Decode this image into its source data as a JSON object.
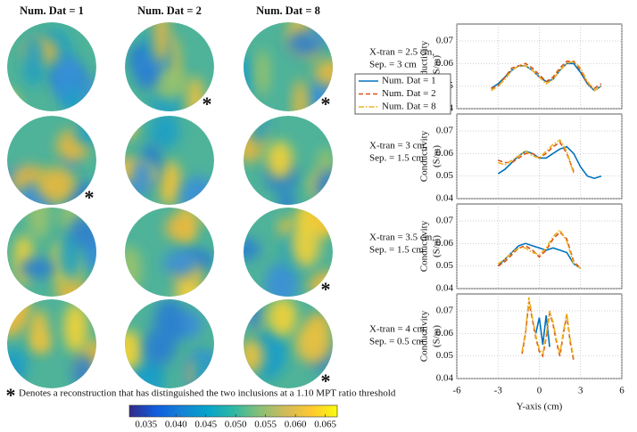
{
  "figure": {
    "column_titles": [
      "Num. Dat = 1",
      "Num. Dat = 2",
      "Num. Dat = 8"
    ],
    "row_labels": [
      [
        "X-tran = 2.5 cm,",
        "Sep. = 3 cm"
      ],
      [
        "X-tran = 3 cm,",
        "Sep. = 1.5 cm"
      ],
      [
        "X-tran = 3.5 cm,",
        "Sep. = 1.5 cm"
      ],
      [
        "X-tran = 4 cm,",
        "Sep. = 0.5 cm"
      ]
    ],
    "marker": "*",
    "note": "Denotes a reconstruction that has distinguished the two inclusions at a 1.10 MPT ratio threshold",
    "distinguished": [
      [
        false,
        true,
        true
      ],
      [
        true,
        false,
        false
      ],
      [
        false,
        false,
        true
      ],
      [
        false,
        false,
        true
      ]
    ]
  },
  "chart_data": [
    {
      "type": "line",
      "y_label": [
        "Conductivity",
        "(S/m)"
      ],
      "legend": "left",
      "grid": true,
      "show_xtick_labels": false,
      "xlim": [
        -6,
        6
      ],
      "xticks": [
        -6,
        -3,
        0,
        3,
        6
      ],
      "ylim": [
        0.04,
        0.0775
      ],
      "yticks": [
        0.04,
        0.05,
        0.06,
        0.07
      ],
      "x": [
        -3.5,
        -3,
        -2.5,
        -2,
        -1.5,
        -1,
        -0.5,
        0,
        0.5,
        1,
        1.5,
        2,
        2.5,
        3,
        3.5,
        4,
        4.5
      ],
      "series": [
        {
          "name": "Num. Dat = 1",
          "color": "#0072bd",
          "dash": "solid",
          "values": [
            0.049,
            0.051,
            0.054,
            0.057,
            0.059,
            0.059,
            0.057,
            0.054,
            0.052,
            0.053,
            0.057,
            0.06,
            0.06,
            0.056,
            0.051,
            0.048,
            0.05
          ]
        },
        {
          "name": "Num. Dat = 2",
          "color": "#d95319",
          "dash": "dashed",
          "values": [
            0.049,
            0.05,
            0.054,
            0.058,
            0.059,
            0.06,
            0.058,
            0.055,
            0.052,
            0.054,
            0.058,
            0.061,
            0.061,
            0.057,
            0.051,
            0.049,
            0.051
          ]
        },
        {
          "name": "Num. Dat = 8",
          "color": "#edb120",
          "dash": "dashdot",
          "values": [
            0.048,
            0.05,
            0.053,
            0.057,
            0.059,
            0.059,
            0.057,
            0.054,
            0.051,
            0.053,
            0.057,
            0.06,
            0.061,
            0.058,
            0.052,
            0.048,
            0.05
          ]
        }
      ]
    },
    {
      "type": "line",
      "y_label": [
        "Conductivity",
        "(S/m)"
      ],
      "grid": true,
      "show_xtick_labels": false,
      "xlim": [
        -6,
        6
      ],
      "xticks": [
        -6,
        -3,
        0,
        3,
        6
      ],
      "ylim": [
        0.04,
        0.0775
      ],
      "yticks": [
        0.04,
        0.05,
        0.06,
        0.07
      ],
      "x": [
        -3,
        -2.5,
        -2,
        -1.5,
        -1,
        -0.5,
        0,
        0.5,
        1,
        1.5,
        2,
        2.5,
        3,
        3.5,
        4,
        4.5
      ],
      "series": [
        {
          "name": "Num. Dat = 1",
          "color": "#0072bd",
          "dash": "solid",
          "values": [
            0.051,
            0.053,
            0.056,
            0.059,
            0.061,
            0.06,
            0.058,
            0.058,
            0.06,
            0.062,
            0.063,
            0.06,
            0.054,
            0.05,
            0.049,
            0.05
          ]
        },
        {
          "name": "Num. Dat = 2",
          "color": "#d95319",
          "dash": "dashed",
          "values": [
            0.057,
            0.056,
            0.056,
            0.058,
            0.06,
            0.06,
            0.058,
            0.06,
            0.063,
            0.065,
            0.06,
            0.052,
            null,
            null,
            null,
            null
          ]
        },
        {
          "name": "Num. Dat = 8",
          "color": "#edb120",
          "dash": "dashdot",
          "values": [
            0.056,
            0.055,
            0.057,
            0.059,
            0.061,
            0.059,
            0.058,
            0.061,
            0.064,
            0.066,
            0.061,
            0.051,
            null,
            null,
            null,
            null
          ]
        }
      ]
    },
    {
      "type": "line",
      "y_label": [
        "Conductivity",
        "(S/m)"
      ],
      "grid": true,
      "show_xtick_labels": false,
      "xlim": [
        -6,
        6
      ],
      "xticks": [
        -6,
        -3,
        0,
        3,
        6
      ],
      "ylim": [
        0.04,
        0.0775
      ],
      "yticks": [
        0.04,
        0.05,
        0.06,
        0.07
      ],
      "x": [
        -3,
        -2.5,
        -2,
        -1.5,
        -1,
        -0.5,
        0,
        0.5,
        1,
        1.5,
        2,
        2.5,
        3
      ],
      "series": [
        {
          "name": "Num. Dat = 1",
          "color": "#0072bd",
          "dash": "solid",
          "values": [
            0.05,
            0.053,
            0.056,
            0.059,
            0.06,
            0.059,
            0.058,
            0.057,
            0.058,
            0.057,
            0.056,
            0.051,
            0.049
          ]
        },
        {
          "name": "Num. Dat = 2",
          "color": "#d95319",
          "dash": "dashed",
          "values": [
            0.05,
            0.052,
            0.055,
            0.058,
            0.059,
            0.057,
            0.054,
            0.057,
            0.062,
            0.065,
            0.062,
            0.052,
            0.049
          ]
        },
        {
          "name": "Num. Dat = 8",
          "color": "#edb120",
          "dash": "dashdot",
          "values": [
            0.051,
            0.053,
            0.056,
            0.058,
            0.058,
            0.056,
            0.055,
            0.058,
            0.063,
            0.066,
            0.061,
            0.051,
            0.049
          ]
        }
      ]
    },
    {
      "type": "line",
      "y_label": [
        "Conductivity",
        "(S/m)"
      ],
      "x_label": "Y-axis (cm)",
      "grid": true,
      "show_xtick_labels": true,
      "xlim": [
        -6,
        6
      ],
      "xticks": [
        -6,
        -3,
        0,
        3,
        6
      ],
      "ylim": [
        0.04,
        0.0775
      ],
      "yticks": [
        0.04,
        0.05,
        0.06,
        0.07
      ],
      "x": [
        -1.5,
        -1.25,
        -1,
        -0.75,
        -0.5,
        -0.25,
        0,
        0.25,
        0.5,
        0.75,
        1,
        1.25,
        1.5,
        1.75,
        2,
        2.25,
        2.5
      ],
      "series": [
        {
          "name": "Num. Dat = 1",
          "color": "#0072bd",
          "dash": "solid",
          "values": [
            null,
            null,
            null,
            null,
            null,
            0.06,
            0.067,
            0.055,
            0.068,
            0.054,
            null,
            null,
            null,
            null,
            null,
            null,
            null
          ]
        },
        {
          "name": "Num. Dat = 2",
          "color": "#d95319",
          "dash": "dashed",
          "values": [
            null,
            0.051,
            0.06,
            0.074,
            0.066,
            0.058,
            0.052,
            0.05,
            0.058,
            0.069,
            0.064,
            0.056,
            0.05,
            0.06,
            0.068,
            0.056,
            0.048
          ]
        },
        {
          "name": "Num. Dat = 8",
          "color": "#edb120",
          "dash": "dashdot",
          "values": [
            null,
            0.052,
            0.061,
            0.076,
            0.067,
            0.059,
            0.053,
            0.051,
            0.059,
            0.07,
            0.065,
            0.057,
            0.051,
            0.061,
            0.069,
            0.057,
            0.049
          ]
        }
      ]
    },
    {
      "type": "colorbar",
      "xlim": [
        0.0322,
        0.067
      ],
      "xticks": [
        0.035,
        {
          "value": 0.04,
          "label": "0.040"
        },
        0.045,
        {
          "value": 0.05,
          "label": "0.050"
        },
        0.055,
        {
          "value": 0.06,
          "label": "0.060"
        },
        0.065
      ],
      "colors": [
        "#352a87",
        "#0f5cdd",
        "#1481d6",
        "#06a4ca",
        "#2eb7a4",
        "#87bf77",
        "#d1bb59",
        "#fec832",
        "#f9fb0e"
      ]
    }
  ]
}
